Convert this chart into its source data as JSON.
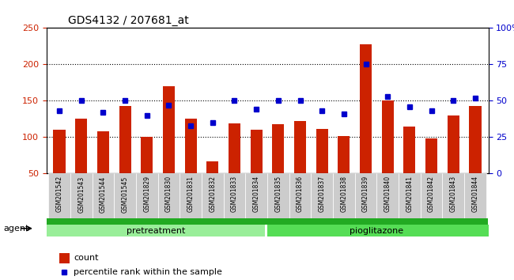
{
  "title": "GDS4132 / 207681_at",
  "samples": [
    "GSM201542",
    "GSM201543",
    "GSM201544",
    "GSM201545",
    "GSM201829",
    "GSM201830",
    "GSM201831",
    "GSM201832",
    "GSM201833",
    "GSM201834",
    "GSM201835",
    "GSM201836",
    "GSM201837",
    "GSM201838",
    "GSM201839",
    "GSM201840",
    "GSM201841",
    "GSM201842",
    "GSM201843",
    "GSM201844"
  ],
  "counts": [
    110,
    125,
    108,
    143,
    100,
    170,
    125,
    67,
    119,
    110,
    118,
    122,
    111,
    102,
    228,
    150,
    115,
    98,
    130,
    143
  ],
  "percentiles": [
    43,
    50,
    42,
    50,
    40,
    47,
    33,
    35,
    50,
    44,
    50,
    50,
    43,
    41,
    75,
    53,
    46,
    43,
    50,
    52
  ],
  "pretreatment_count": 10,
  "pioglitazone_count": 10,
  "ylim_left": [
    50,
    250
  ],
  "ylim_right": [
    0,
    100
  ],
  "yticks_left": [
    50,
    100,
    150,
    200,
    250
  ],
  "yticks_right": [
    0,
    25,
    50,
    75,
    100
  ],
  "bar_color": "#cc2200",
  "dot_color": "#0000cc",
  "pretreatment_color": "#99ee99",
  "pioglitazone_color": "#55dd55",
  "agent_band_color": "#22aa22",
  "tick_bg_color": "#cccccc",
  "legend_count_label": "count",
  "legend_pct_label": "percentile rank within the sample",
  "group_label_pretreatment": "pretreatment",
  "group_label_pioglitazone": "pioglitazone",
  "agent_label": "agent"
}
